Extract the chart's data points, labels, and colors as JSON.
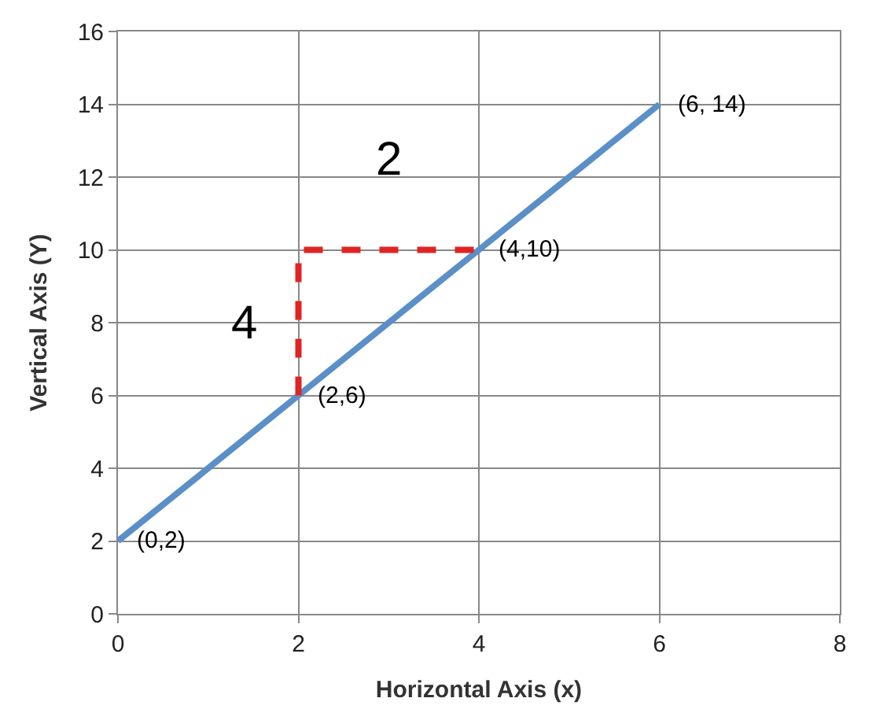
{
  "chart_data": {
    "type": "line",
    "xlabel": "Horizontal Axis (x)",
    "ylabel": "Vertical Axis (Y)",
    "xlim": [
      0,
      8
    ],
    "xticks": [
      0,
      2,
      4,
      6,
      8
    ],
    "ylim": [
      0,
      16
    ],
    "yticks": [
      0,
      2,
      4,
      6,
      8,
      10,
      12,
      14,
      16
    ],
    "grid": true,
    "marker": "none",
    "series": [
      {
        "color": "#5b8fc7",
        "x": [
          0,
          2,
          4,
          6
        ],
        "values": [
          2,
          6,
          10,
          14
        ],
        "line_style": "solid"
      },
      {
        "color": "#e02424",
        "x": [
          2,
          2,
          4
        ],
        "values": [
          6,
          10,
          10
        ],
        "line_style": "dashed"
      }
    ],
    "annotations": [
      {
        "text": "(0,2)",
        "x": 0,
        "y": 2
      },
      {
        "text": "(2,6)",
        "x": 2,
        "y": 6
      },
      {
        "text": "(4,10)",
        "x": 4,
        "y": 10
      },
      {
        "text": "(6, 14)",
        "x": 6,
        "y": 14
      },
      "4",
      "2"
    ]
  }
}
